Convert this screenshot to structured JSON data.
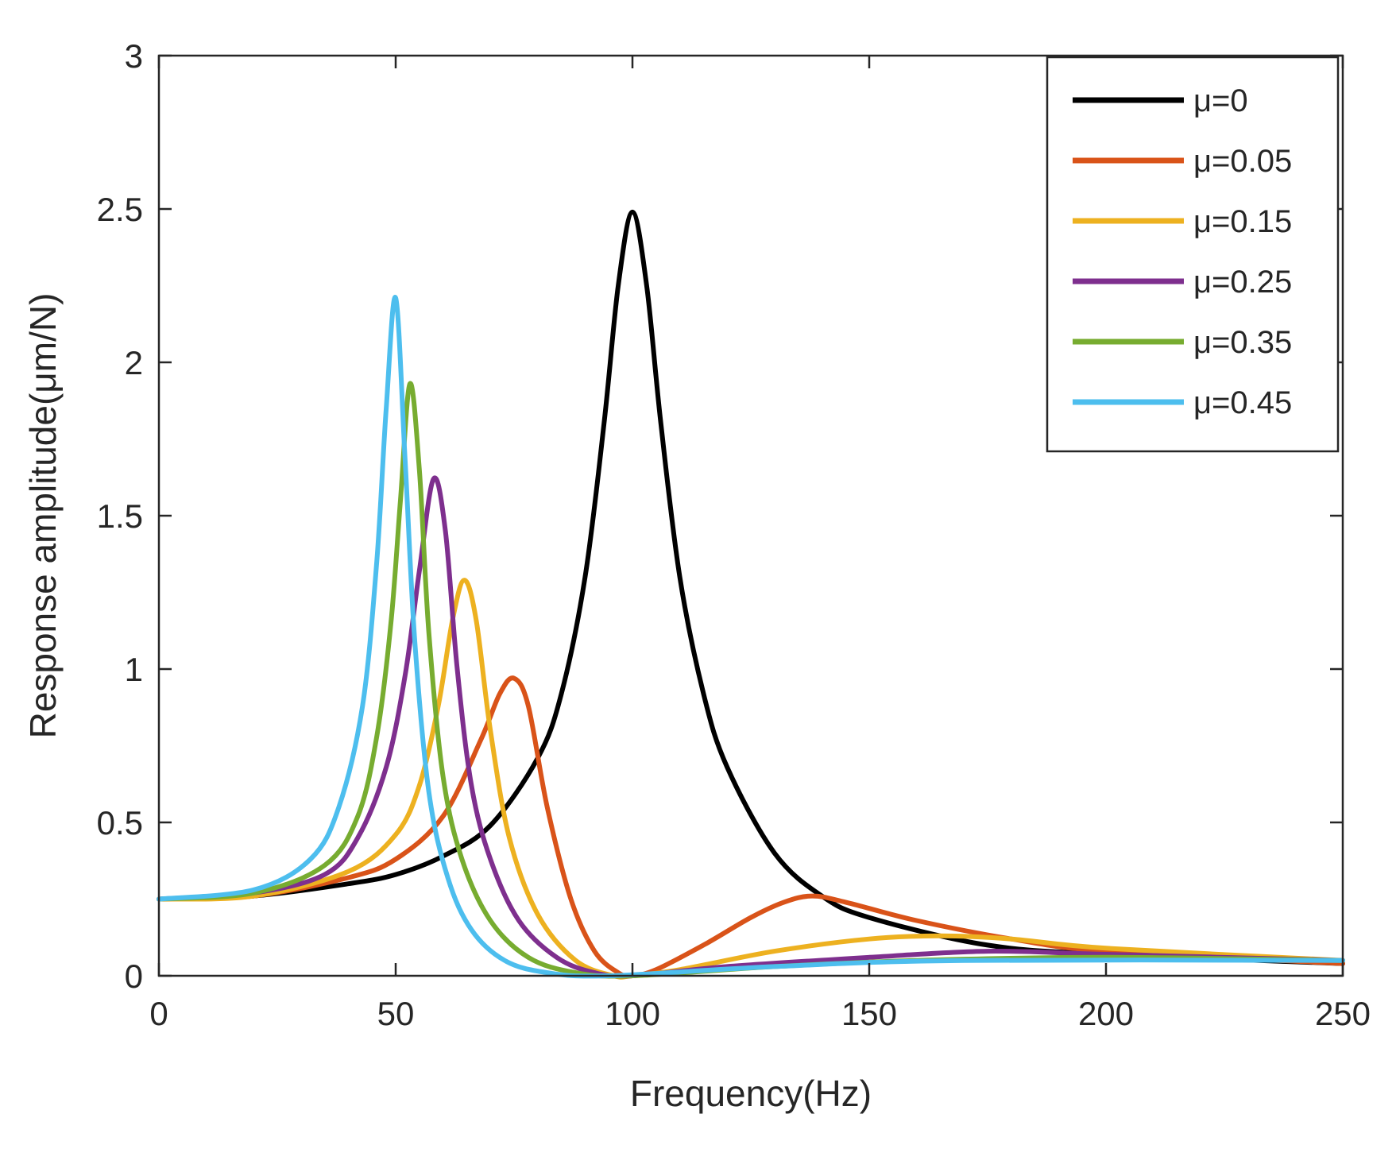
{
  "chart_data": {
    "type": "line",
    "title": "",
    "xlabel": "Frequency(Hz)",
    "ylabel": "Response amplitude(μm/N)",
    "xlim": [
      0,
      250
    ],
    "ylim": [
      0,
      3
    ],
    "xticks": [
      0,
      50,
      100,
      150,
      200,
      250
    ],
    "yticks": [
      0,
      0.5,
      1,
      1.5,
      2,
      2.5,
      3
    ],
    "xtick_labels": [
      "0",
      "50",
      "100",
      "150",
      "200",
      "250"
    ],
    "ytick_labels": [
      "0",
      "0.5",
      "1",
      "1.5",
      "2",
      "2.5",
      "3"
    ],
    "grid": false,
    "legend_position": "top-right",
    "series": [
      {
        "name": "μ=0",
        "color": "#000000",
        "points": [
          [
            0,
            0.25
          ],
          [
            20,
            0.26
          ],
          [
            40,
            0.3
          ],
          [
            50,
            0.33
          ],
          [
            60,
            0.39
          ],
          [
            70,
            0.49
          ],
          [
            80,
            0.71
          ],
          [
            85,
            0.92
          ],
          [
            90,
            1.3
          ],
          [
            94,
            1.8
          ],
          [
            97,
            2.25
          ],
          [
            100,
            2.49
          ],
          [
            103,
            2.25
          ],
          [
            106,
            1.8
          ],
          [
            110,
            1.3
          ],
          [
            115,
            0.92
          ],
          [
            120,
            0.68
          ],
          [
            130,
            0.4
          ],
          [
            140,
            0.26
          ],
          [
            150,
            0.19
          ],
          [
            175,
            0.1
          ],
          [
            200,
            0.07
          ],
          [
            250,
            0.04
          ]
        ]
      },
      {
        "name": "μ=0.05",
        "color": "#D95319",
        "points": [
          [
            0,
            0.25
          ],
          [
            20,
            0.26
          ],
          [
            40,
            0.32
          ],
          [
            50,
            0.38
          ],
          [
            60,
            0.52
          ],
          [
            68,
            0.77
          ],
          [
            72,
            0.92
          ],
          [
            75,
            0.97
          ],
          [
            78,
            0.88
          ],
          [
            82,
            0.55
          ],
          [
            87,
            0.25
          ],
          [
            92,
            0.08
          ],
          [
            97,
            0.01
          ],
          [
            100,
            0.0
          ],
          [
            105,
            0.02
          ],
          [
            115,
            0.1
          ],
          [
            125,
            0.19
          ],
          [
            132,
            0.24
          ],
          [
            138,
            0.26
          ],
          [
            145,
            0.24
          ],
          [
            160,
            0.18
          ],
          [
            180,
            0.12
          ],
          [
            200,
            0.08
          ],
          [
            250,
            0.04
          ]
        ]
      },
      {
        "name": "μ=0.15",
        "color": "#EDB120",
        "points": [
          [
            0,
            0.25
          ],
          [
            20,
            0.26
          ],
          [
            40,
            0.34
          ],
          [
            50,
            0.46
          ],
          [
            55,
            0.62
          ],
          [
            59,
            0.88
          ],
          [
            62,
            1.16
          ],
          [
            64.5,
            1.29
          ],
          [
            67,
            1.16
          ],
          [
            70,
            0.8
          ],
          [
            74,
            0.45
          ],
          [
            80,
            0.2
          ],
          [
            88,
            0.05
          ],
          [
            96,
            0.0
          ],
          [
            100,
            0.0
          ],
          [
            110,
            0.02
          ],
          [
            130,
            0.08
          ],
          [
            150,
            0.12
          ],
          [
            165,
            0.13
          ],
          [
            180,
            0.12
          ],
          [
            200,
            0.09
          ],
          [
            250,
            0.05
          ]
        ]
      },
      {
        "name": "μ=0.25",
        "color": "#7E2F8E",
        "points": [
          [
            0,
            0.25
          ],
          [
            20,
            0.27
          ],
          [
            35,
            0.33
          ],
          [
            42,
            0.45
          ],
          [
            48,
            0.68
          ],
          [
            52,
            0.98
          ],
          [
            55,
            1.32
          ],
          [
            58,
            1.62
          ],
          [
            60.5,
            1.45
          ],
          [
            63,
            1.0
          ],
          [
            66,
            0.62
          ],
          [
            70,
            0.38
          ],
          [
            76,
            0.18
          ],
          [
            84,
            0.06
          ],
          [
            92,
            0.01
          ],
          [
            100,
            0.0
          ],
          [
            120,
            0.03
          ],
          [
            150,
            0.06
          ],
          [
            175,
            0.08
          ],
          [
            200,
            0.07
          ],
          [
            250,
            0.05
          ]
        ]
      },
      {
        "name": "μ=0.35",
        "color": "#77AC30",
        "points": [
          [
            0,
            0.25
          ],
          [
            20,
            0.27
          ],
          [
            35,
            0.36
          ],
          [
            42,
            0.52
          ],
          [
            46,
            0.78
          ],
          [
            49,
            1.15
          ],
          [
            51,
            1.55
          ],
          [
            53,
            1.93
          ],
          [
            55,
            1.65
          ],
          [
            57,
            1.12
          ],
          [
            60,
            0.65
          ],
          [
            64,
            0.38
          ],
          [
            70,
            0.18
          ],
          [
            78,
            0.06
          ],
          [
            88,
            0.01
          ],
          [
            100,
            0.0
          ],
          [
            130,
            0.03
          ],
          [
            160,
            0.05
          ],
          [
            200,
            0.06
          ],
          [
            250,
            0.05
          ]
        ]
      },
      {
        "name": "μ=0.45",
        "color": "#4DBEEE",
        "points": [
          [
            0,
            0.25
          ],
          [
            20,
            0.28
          ],
          [
            32,
            0.38
          ],
          [
            38,
            0.55
          ],
          [
            43,
            0.88
          ],
          [
            46,
            1.35
          ],
          [
            48,
            1.85
          ],
          [
            50,
            2.21
          ],
          [
            52,
            1.68
          ],
          [
            54,
            1.1
          ],
          [
            57,
            0.6
          ],
          [
            61,
            0.32
          ],
          [
            66,
            0.15
          ],
          [
            73,
            0.05
          ],
          [
            82,
            0.01
          ],
          [
            95,
            0.0
          ],
          [
            130,
            0.03
          ],
          [
            170,
            0.05
          ],
          [
            250,
            0.05
          ]
        ]
      }
    ]
  }
}
